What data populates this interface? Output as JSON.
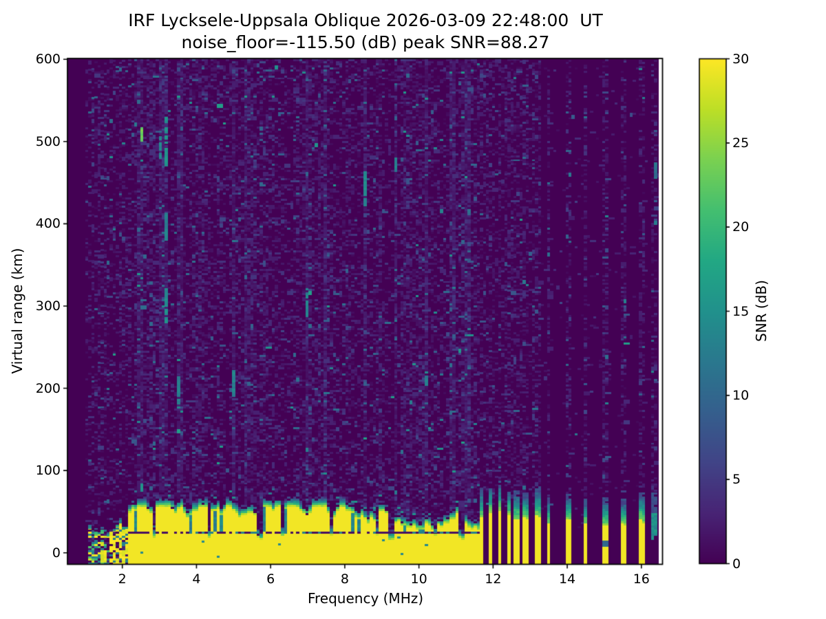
{
  "chart_data": {
    "type": "heatmap",
    "title": "IRF Lycksele-Uppsala Oblique 2026-03-09 22:48:00  UT",
    "subtitle": "noise_floor=-115.50 (dB) peak SNR=88.27",
    "noise_floor_db": -115.5,
    "peak_snr_db": 88.27,
    "xlabel": "Frequency (MHz)",
    "ylabel": "Virtual range (km)",
    "x_axis": {
      "range_mhz": [
        0.52,
        16.57
      ],
      "ticks": [
        2,
        4,
        6,
        8,
        10,
        12,
        14,
        16
      ]
    },
    "y_axis": {
      "range_km": [
        -14,
        601
      ],
      "ticks": [
        0,
        100,
        200,
        300,
        400,
        500,
        600
      ]
    },
    "colorbar": {
      "label": "SNR (dB)",
      "range_db": [
        0,
        30
      ],
      "ticks": [
        0,
        5,
        10,
        15,
        20,
        25,
        30
      ],
      "colormap": "viridis",
      "stops": [
        "#440154",
        "#482475",
        "#414487",
        "#355f8d",
        "#2a788e",
        "#21918c",
        "#22a884",
        "#44bf70",
        "#7ad151",
        "#bddf26",
        "#fde725"
      ]
    },
    "sweep": {
      "f_start_mhz": 1.0,
      "f_end_mhz": 16.42,
      "df_mhz": 0.0825,
      "range_step_km": 2.5
    },
    "ground_band": {
      "f_start_mhz": 1.11,
      "solid_from_mhz": 2.13,
      "f_end_mhz": 11.63,
      "top_km_min": 28,
      "top_km_max": 56,
      "dark_line_km": [
        23.5,
        26.5
      ]
    },
    "band_notches_mhz": [
      2.87,
      4.32,
      5.7,
      6.32,
      7.65,
      8.9,
      9.26,
      10.42,
      11.15
    ],
    "hot_columns_mhz": [
      2.48,
      3.05,
      3.15,
      3.55,
      5.0,
      5.32,
      6.95,
      7.5,
      8.52,
      9.35,
      10.2,
      10.9,
      11.32
    ],
    "interference_stripes": [
      {
        "f_mhz": 11.7,
        "half_mhz": 0.05,
        "yellow_top_km": 46,
        "teal_top_km": 72
      },
      {
        "f_mhz": 11.93,
        "half_mhz": 0.05,
        "yellow_top_km": 48,
        "teal_top_km": 76
      },
      {
        "f_mhz": 12.17,
        "half_mhz": 0.05,
        "yellow_top_km": 50,
        "teal_top_km": 80
      },
      {
        "f_mhz": 12.4,
        "half_mhz": 0.05,
        "yellow_top_km": 46,
        "teal_top_km": 72
      },
      {
        "f_mhz": 12.63,
        "half_mhz": 0.05,
        "yellow_top_km": 43,
        "teal_top_km": 68
      },
      {
        "f_mhz": 12.87,
        "half_mhz": 0.07,
        "yellow_top_km": 41,
        "teal_top_km": 66
      },
      {
        "f_mhz": 13.2,
        "half_mhz": 0.07,
        "yellow_top_km": 46,
        "teal_top_km": 73
      },
      {
        "f_mhz": 13.52,
        "half_mhz": 0.05,
        "yellow_top_km": 36,
        "teal_top_km": 60
      },
      {
        "f_mhz": 14.02,
        "half_mhz": 0.06,
        "yellow_top_km": 38,
        "teal_top_km": 64
      },
      {
        "f_mhz": 14.52,
        "half_mhz": 0.05,
        "yellow_top_km": 36,
        "teal_top_km": 58
      },
      {
        "f_mhz": 15.02,
        "half_mhz": 0.05,
        "yellow_top_km": 35,
        "teal_top_km": 60,
        "gap_km": [
          7.5,
          15
        ]
      },
      {
        "f_mhz": 15.52,
        "half_mhz": 0.05,
        "yellow_top_km": 36,
        "teal_top_km": 58
      },
      {
        "f_mhz": 16.0,
        "half_mhz": 0.06,
        "yellow_top_km": 40,
        "teal_top_km": 66
      }
    ],
    "edge_column_mhz": 16.35,
    "streaks": [
      {
        "f_mhz": 3.15,
        "km": [
          470,
          530
        ],
        "snr_db": 15
      },
      {
        "f_mhz": 3.15,
        "km": [
          379,
          413
        ],
        "snr_db": 13
      },
      {
        "f_mhz": 3.17,
        "km": [
          279,
          320
        ],
        "snr_db": 14
      },
      {
        "f_mhz": 3.0,
        "km": [
          479,
          505
        ],
        "snr_db": 14
      },
      {
        "f_mhz": 2.5,
        "km": [
          500,
          517
        ],
        "snr_db": 23
      },
      {
        "f_mhz": 2.5,
        "km": [
          74,
          86
        ],
        "snr_db": 15
      },
      {
        "f_mhz": 3.55,
        "km": [
          175,
          215
        ],
        "snr_db": 13
      },
      {
        "f_mhz": 5.0,
        "km": [
          190,
          225
        ],
        "snr_db": 13
      },
      {
        "f_mhz": 6.94,
        "km": [
          287,
          320
        ],
        "snr_db": 13
      },
      {
        "f_mhz": 8.52,
        "km": [
          421,
          463
        ],
        "snr_db": 14
      },
      {
        "f_mhz": 9.35,
        "km": [
          463,
          479
        ],
        "snr_db": 13
      },
      {
        "f_mhz": 10.19,
        "km": [
          203,
          220
        ],
        "snr_db": 13
      },
      {
        "f_mhz": 16.35,
        "km": [
          455,
          475
        ],
        "snr_db": 11
      }
    ],
    "noise_seed": 20260309
  }
}
